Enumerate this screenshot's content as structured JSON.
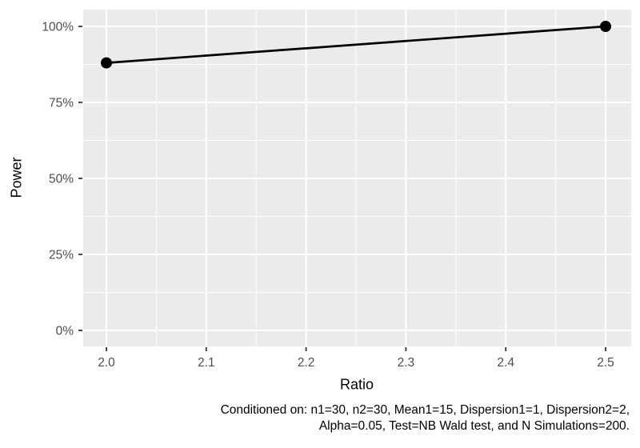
{
  "figure": {
    "x_axis_title": "Ratio",
    "y_axis_title": "Power",
    "caption_line1": "Conditioned on: n1=30, n2=30, Mean1=15, Dispersion1=1, Dispersion2=2,",
    "caption_line2": "Alpha=0.05, Test=NB Wald test, and N Simulations=200."
  },
  "chart_data": {
    "type": "line",
    "title": "",
    "xlabel": "Ratio",
    "ylabel": "Power",
    "x": [
      2.0,
      2.5
    ],
    "series": [
      {
        "name": "Power",
        "values": [
          0.88,
          1.0
        ]
      }
    ],
    "x_ticks": [
      2.0,
      2.1,
      2.2,
      2.3,
      2.4,
      2.5
    ],
    "x_tick_labels": [
      "2.0",
      "2.1",
      "2.2",
      "2.3",
      "2.4",
      "2.5"
    ],
    "y_ticks": [
      0,
      0.25,
      0.5,
      0.75,
      1.0
    ],
    "y_tick_labels": [
      "0%",
      "25%",
      "50%",
      "75%",
      "100%"
    ],
    "xlim": [
      2.0,
      2.5
    ],
    "ylim": [
      0,
      1
    ],
    "grid": "major+minor",
    "legend": "none",
    "caption": "Conditioned on: n1=30, n2=30, Mean1=15, Dispersion1=1, Dispersion2=2, Alpha=0.05, Test=NB Wald test, and N Simulations=200.",
    "colors": {
      "panel_bg": "#EBEBEB",
      "grid": "#FFFFFF",
      "line": "#000000",
      "point": "#000000",
      "tick_label": "#4D4D4D",
      "tick_mark": "#333333",
      "title_text": "#000000"
    }
  }
}
